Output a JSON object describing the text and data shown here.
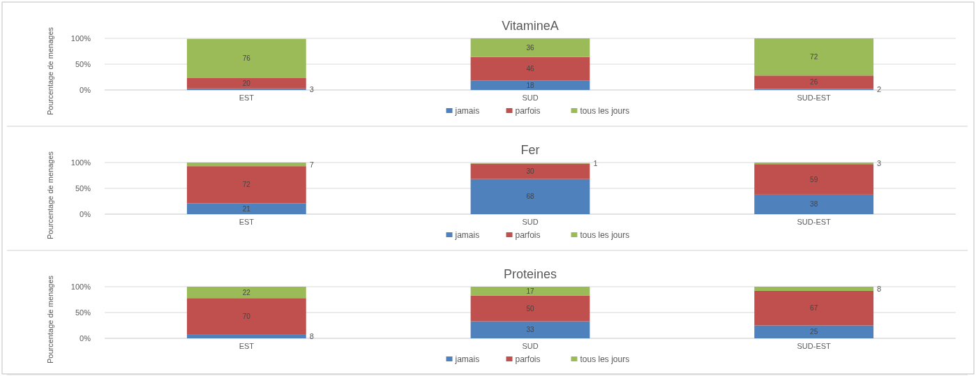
{
  "chart_data": [
    {
      "type": "bar",
      "title": "VitamineA",
      "ylabel": "Pourcentage de menages",
      "categories": [
        "EST",
        "SUD",
        "SUD-EST"
      ],
      "stacked": true,
      "data_labels": true,
      "legend": "bottom",
      "grid": "y",
      "ylim": [
        0,
        100
      ],
      "yticks": [
        {
          "value": 0,
          "label": "0%"
        },
        {
          "value": 50,
          "label": "50%"
        },
        {
          "value": 100,
          "label": "100%"
        }
      ],
      "series": [
        {
          "name": "jamais",
          "color": "#4f81bd",
          "values": [
            3,
            18,
            2
          ]
        },
        {
          "name": "parfois",
          "color": "#c0504d",
          "values": [
            20,
            46,
            26
          ]
        },
        {
          "name": "tous les jours",
          "color": "#9bbb59",
          "values": [
            76,
            36,
            72
          ]
        }
      ]
    },
    {
      "type": "bar",
      "title": "Fer",
      "ylabel": "Pourcentage de menages",
      "categories": [
        "EST",
        "SUD",
        "SUD-EST"
      ],
      "stacked": true,
      "data_labels": true,
      "legend": "bottom",
      "grid": "y",
      "ylim": [
        0,
        100
      ],
      "yticks": [
        {
          "value": 0,
          "label": "0%"
        },
        {
          "value": 50,
          "label": "50%"
        },
        {
          "value": 100,
          "label": "100%"
        }
      ],
      "series": [
        {
          "name": "jamais",
          "color": "#4f81bd",
          "values": [
            21,
            68,
            38
          ]
        },
        {
          "name": "parfois",
          "color": "#c0504d",
          "values": [
            72,
            30,
            59
          ]
        },
        {
          "name": "tous les jours",
          "color": "#9bbb59",
          "values": [
            7,
            1,
            3
          ]
        }
      ]
    },
    {
      "type": "bar",
      "title": "Proteines",
      "ylabel": "Pourcentage de menages",
      "categories": [
        "EST",
        "SUD",
        "SUD-EST"
      ],
      "stacked": true,
      "data_labels": true,
      "legend": "bottom",
      "grid": "y",
      "ylim": [
        0,
        100
      ],
      "yticks": [
        {
          "value": 0,
          "label": "0%"
        },
        {
          "value": 50,
          "label": "50%"
        },
        {
          "value": 100,
          "label": "100%"
        }
      ],
      "series": [
        {
          "name": "jamais",
          "color": "#4f81bd",
          "values": [
            8,
            33,
            25
          ]
        },
        {
          "name": "parfois",
          "color": "#c0504d",
          "values": [
            70,
            50,
            67
          ]
        },
        {
          "name": "tous les jours",
          "color": "#9bbb59",
          "values": [
            22,
            17,
            8
          ]
        }
      ]
    }
  ]
}
